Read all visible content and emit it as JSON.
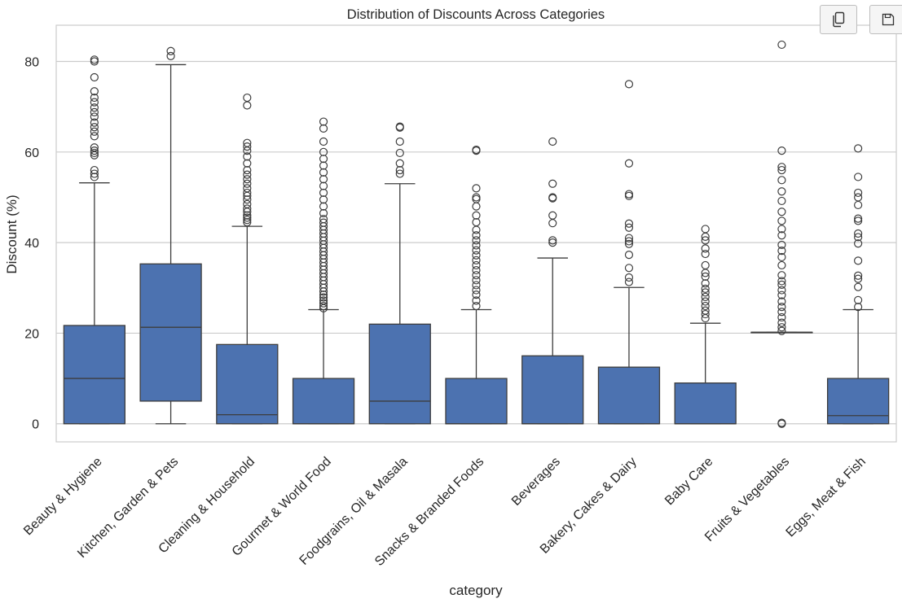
{
  "chart_data": {
    "type": "box",
    "title": "Distribution of Discounts Across Categories",
    "xlabel": "category",
    "ylabel": "Discount (%)",
    "ylim": [
      -4,
      88
    ],
    "yticks": [
      0,
      20,
      40,
      60,
      80
    ],
    "grid": true,
    "color": "#4C72B0",
    "categories": [
      "Beauty & Hygiene",
      "Kitchen, Garden & Pets",
      "Cleaning & Household",
      "Gourmet & World Food",
      "Foodgrains, Oil & Masala",
      "Snacks & Branded Foods",
      "Beverages",
      "Bakery, Cakes & Dairy",
      "Baby Care",
      "Fruits & Vegetables",
      "Eggs, Meat & Fish"
    ],
    "boxes": [
      {
        "whislo": 0,
        "q1": 0,
        "med": 10,
        "q3": 21.7,
        "whishi": 53.2,
        "fliers": [
          54.5,
          55.2,
          56,
          59.3,
          59.8,
          60.3,
          61,
          63.5,
          64.5,
          65.5,
          66.5,
          67.8,
          68.8,
          69.8,
          71,
          72,
          73.4,
          76.5,
          80,
          80.4
        ]
      },
      {
        "whislo": 0,
        "q1": 5,
        "med": 21.3,
        "q3": 35.3,
        "whishi": 79.3,
        "fliers": [
          81.2,
          82.3
        ]
      },
      {
        "whislo": 0,
        "q1": 0,
        "med": 2,
        "q3": 17.5,
        "whishi": 43.6,
        "fliers": [
          44.5,
          45,
          45.5,
          46,
          46.8,
          47.5,
          48.5,
          49.5,
          50.3,
          51,
          52,
          53,
          54,
          55,
          56,
          57.5,
          59,
          60.3,
          61.2,
          62,
          70.3,
          72
        ]
      },
      {
        "whislo": 0,
        "q1": 0,
        "med": 0,
        "q3": 10,
        "whishi": 25.2,
        "fliers": [
          25.5,
          26,
          26.6,
          27.2,
          27.9,
          28.5,
          29.2,
          30,
          30.8,
          31.6,
          32.4,
          33.2,
          34,
          34.8,
          35.6,
          36.4,
          37.2,
          38,
          38.8,
          39.6,
          40.4,
          41.2,
          42,
          42.8,
          43.6,
          44.4,
          45.2,
          46.5,
          48,
          49.5,
          51,
          52.5,
          54,
          55.5,
          57,
          58.5,
          60,
          62.3,
          65.2,
          66.7
        ]
      },
      {
        "whislo": 0,
        "q1": 0,
        "med": 5,
        "q3": 22,
        "whishi": 53,
        "fliers": [
          55.2,
          56,
          57.5,
          59.8,
          62.3,
          65.4,
          65.6
        ]
      },
      {
        "whislo": 0,
        "q1": 0,
        "med": 0,
        "q3": 10,
        "whishi": 25.2,
        "fliers": [
          26,
          27.2,
          28.5,
          29.5,
          30.6,
          31.7,
          32.8,
          33.9,
          35,
          36.1,
          37.2,
          38.3,
          39.4,
          40.5,
          41.6,
          42.8,
          44.5,
          46,
          48,
          49.6,
          50,
          52,
          60.3,
          60.5
        ]
      },
      {
        "whislo": 0,
        "q1": 0,
        "med": 0,
        "q3": 15,
        "whishi": 36.6,
        "fliers": [
          40,
          40.5,
          44.3,
          46,
          49.8,
          50,
          53,
          62.3
        ]
      },
      {
        "whislo": 0,
        "q1": 0,
        "med": 0,
        "q3": 12.5,
        "whishi": 30.1,
        "fliers": [
          31.3,
          32.3,
          34.4,
          37.3,
          39.7,
          40.3,
          41,
          43.3,
          44.2,
          50.3,
          50.7,
          57.5,
          75
        ]
      },
      {
        "whislo": 0,
        "q1": 0,
        "med": 0,
        "q3": 9,
        "whishi": 22.2,
        "fliers": [
          23.3,
          24.2,
          25,
          26,
          27,
          28,
          29,
          29.8,
          31,
          32.5,
          33.3,
          35,
          37.5,
          38.7,
          40.5,
          41.3,
          43
        ]
      },
      {
        "whislo": 20.2,
        "q1": 20.2,
        "med": 20.2,
        "q3": 20.2,
        "whishi": 20.2,
        "fliers": [
          0,
          0.2,
          20.5,
          21.3,
          22.3,
          23.5,
          24.7,
          25.8,
          27,
          28.4,
          29.5,
          30.7,
          31.5,
          32.8,
          35,
          36.8,
          38.2,
          39.5,
          41.6,
          43,
          44.8,
          46.8,
          49.2,
          51.3,
          53.8,
          56,
          56.7,
          60.3,
          83.7
        ]
      },
      {
        "whislo": 0,
        "q1": 0,
        "med": 1.8,
        "q3": 10,
        "whishi": 25.2,
        "fliers": [
          25.8,
          27.3,
          30.2,
          32,
          32.7,
          36,
          39.8,
          41.2,
          42,
          44.8,
          45.3,
          48.3,
          50,
          51,
          54.5,
          60.8
        ]
      }
    ]
  },
  "toolbar": {
    "copy_icon": "copy-icon",
    "save_icon": "save-icon"
  }
}
